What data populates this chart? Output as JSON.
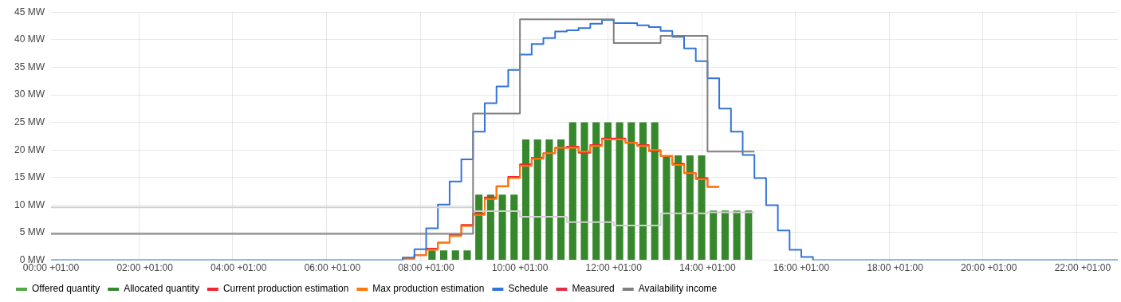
{
  "chart_data": {
    "type": "step",
    "ylim": [
      0,
      45
    ],
    "categories": [
      "00:00 +01:00",
      null,
      null,
      null,
      null,
      null,
      null,
      null,
      "02:00 +01:00",
      null,
      null,
      null,
      null,
      null,
      null,
      null,
      "04:00 +01:00",
      null,
      null,
      null,
      null,
      null,
      null,
      null,
      "06:00 +01:00",
      null,
      null,
      null,
      null,
      null,
      null,
      null,
      "08:00 +01:00",
      null,
      null,
      null,
      null,
      null,
      null,
      null,
      "10:00 +01:00",
      null,
      null,
      null,
      null,
      null,
      null,
      null,
      "12:00 +01:00",
      null,
      null,
      null,
      null,
      null,
      null,
      null,
      "14:00 +01:00",
      null,
      null,
      null,
      null,
      null,
      null,
      null,
      "16:00 +01:00",
      null,
      null,
      null,
      null,
      null,
      null,
      null,
      "18:00 +01:00",
      null,
      null,
      null,
      null,
      null,
      null,
      null,
      "20:00 +01:00",
      null,
      null,
      null,
      null,
      null,
      null,
      null,
      "22:00 +01:00",
      null,
      null,
      null
    ],
    "yticks": [
      {
        "value": 0,
        "label": "0 MW"
      },
      {
        "value": 5,
        "label": "5 MW"
      },
      {
        "value": 10,
        "label": "10 MW"
      },
      {
        "value": 15,
        "label": "15 MW"
      },
      {
        "value": 20,
        "label": "20 MW"
      },
      {
        "value": 25,
        "label": "25 MW"
      },
      {
        "value": 30,
        "label": "30 MW"
      },
      {
        "value": 35,
        "label": "35 MW"
      },
      {
        "value": 40,
        "label": "40 MW"
      },
      {
        "value": 45,
        "label": "45 MW"
      }
    ],
    "grid": true,
    "legend": "bottom",
    "marker": "none",
    "line_style": "solid",
    "series": [
      {
        "name": "Offered quantity",
        "color": "#56a64b",
        "values": [
          null,
          null,
          null,
          null,
          null,
          null,
          null,
          null,
          null,
          null,
          null,
          null,
          null,
          null,
          null,
          null,
          null,
          null,
          null,
          null,
          null,
          null,
          null,
          null,
          null,
          null,
          null,
          null,
          null,
          null,
          null,
          null,
          null,
          null,
          null,
          null,
          null,
          null,
          null,
          null,
          null,
          null,
          null,
          null,
          null,
          null,
          null,
          null,
          null,
          null,
          null,
          null,
          null,
          null,
          null,
          null,
          null,
          null,
          null,
          null,
          null,
          null,
          null,
          null,
          null,
          null,
          null,
          null,
          null,
          null,
          null,
          null,
          null,
          null,
          null,
          null,
          null,
          null,
          null,
          null,
          null,
          null,
          null,
          null,
          null,
          null,
          null,
          null,
          null,
          null,
          null,
          null
        ]
      },
      {
        "name": "Allocated quantity",
        "type": "bar",
        "color": "#37872d",
        "values": [
          null,
          null,
          null,
          null,
          null,
          null,
          null,
          null,
          null,
          null,
          null,
          null,
          null,
          null,
          null,
          null,
          null,
          null,
          null,
          null,
          null,
          null,
          null,
          null,
          null,
          null,
          null,
          null,
          null,
          null,
          null,
          null,
          1.8,
          1.8,
          1.8,
          1.8,
          11.9,
          11.9,
          11.9,
          11.9,
          21.9,
          21.9,
          21.9,
          21.9,
          25,
          25,
          25,
          25,
          25,
          25,
          25,
          25,
          19,
          19,
          19,
          19,
          9,
          9,
          9,
          9,
          null,
          null,
          null,
          null,
          null,
          null,
          null,
          null,
          null,
          null,
          null,
          null,
          null,
          null,
          null,
          null,
          null,
          null,
          null,
          null,
          null,
          null,
          null,
          null,
          null,
          null,
          null,
          null,
          null,
          null,
          null,
          null
        ]
      },
      {
        "name": "Current production estimation",
        "color": "#f2262f",
        "values": [
          null,
          null,
          null,
          null,
          null,
          null,
          null,
          null,
          null,
          null,
          null,
          null,
          null,
          null,
          null,
          null,
          null,
          null,
          null,
          null,
          null,
          null,
          null,
          null,
          null,
          null,
          null,
          null,
          null,
          null,
          0.3,
          0.9,
          2.1,
          3.2,
          4.6,
          6.4,
          8.5,
          11.4,
          13.4,
          15.1,
          17.4,
          18.6,
          19.4,
          20.4,
          20.6,
          19.5,
          20.9,
          22.1,
          22.1,
          21.3,
          20.9,
          19.8,
          18.9,
          17.5,
          15.8,
          14.9,
          13.3,
          13.3,
          null,
          null,
          null,
          null,
          null,
          null,
          null,
          null,
          null,
          null,
          null,
          null,
          null,
          null,
          null,
          null,
          null,
          null,
          null,
          null,
          null,
          null,
          null,
          null,
          null,
          null,
          null,
          null,
          null,
          null,
          null,
          null,
          null,
          null
        ]
      },
      {
        "name": "Max production estimation",
        "color": "#ff780a",
        "values": [
          null,
          null,
          null,
          null,
          null,
          null,
          null,
          null,
          null,
          null,
          null,
          null,
          null,
          null,
          null,
          null,
          null,
          null,
          null,
          null,
          null,
          null,
          null,
          null,
          null,
          null,
          null,
          null,
          null,
          null,
          0.3,
          0.9,
          1.9,
          3.2,
          4.4,
          6.2,
          8.2,
          11.1,
          13.4,
          14.9,
          17.1,
          18.4,
          19.4,
          20.4,
          20.4,
          19.7,
          20.7,
          21.9,
          21.9,
          21.3,
          20.7,
          20.0,
          18.9,
          17.3,
          15.8,
          14.7,
          13.3,
          13.3,
          null,
          null,
          null,
          null,
          null,
          null,
          null,
          null,
          null,
          null,
          null,
          null,
          null,
          null,
          null,
          null,
          null,
          null,
          null,
          null,
          null,
          null,
          null,
          null,
          null,
          null,
          null,
          null,
          null,
          null,
          null,
          null,
          null,
          null
        ]
      },
      {
        "name": "Schedule",
        "color": "#3274d9",
        "values": [
          0,
          0,
          0,
          0,
          0,
          0,
          0,
          0,
          0,
          0,
          0,
          0,
          0,
          0,
          0,
          0,
          0,
          0,
          0,
          0,
          0,
          0,
          0,
          0,
          0,
          0,
          0,
          0,
          0,
          0,
          0.5,
          2.0,
          5.8,
          10.1,
          14.3,
          18.3,
          23.3,
          28.5,
          31.5,
          34.5,
          37.3,
          39.2,
          40.3,
          41.5,
          41.7,
          42.1,
          42.9,
          43.6,
          43.0,
          43.0,
          42.6,
          42.3,
          41.6,
          40.5,
          38.4,
          36.1,
          33.0,
          27.5,
          23.3,
          19.1,
          14.9,
          10.0,
          5.4,
          1.9,
          0.6,
          0,
          0,
          0,
          0,
          0,
          0,
          0,
          0,
          0,
          0,
          0,
          0,
          0,
          0,
          0,
          0,
          0,
          0,
          0,
          0,
          0,
          0,
          0,
          0,
          0,
          0,
          0
        ]
      },
      {
        "name": "Measured",
        "color": "#e02f44",
        "values": [
          null,
          null,
          null,
          null,
          null,
          null,
          null,
          null,
          null,
          null,
          null,
          null,
          null,
          null,
          null,
          null,
          null,
          null,
          null,
          null,
          null,
          null,
          null,
          null,
          null,
          null,
          null,
          null,
          null,
          null,
          null,
          null,
          null,
          null,
          null,
          null,
          null,
          null,
          null,
          null,
          null,
          null,
          null,
          null,
          null,
          null,
          null,
          null,
          null,
          null,
          null,
          null,
          null,
          null,
          null,
          null,
          null,
          null,
          null,
          null,
          null,
          null,
          null,
          null,
          null,
          null,
          null,
          null,
          null,
          null,
          null,
          null,
          null,
          null,
          null,
          null,
          null,
          null,
          null,
          null,
          null,
          null,
          null,
          null,
          null,
          null,
          null,
          null,
          null,
          null,
          null,
          null
        ]
      },
      {
        "color": "#d0d0d0",
        "values": [
          9.6,
          9.6,
          9.6,
          9.6,
          9.6,
          9.6,
          9.6,
          9.6,
          9.6,
          9.6,
          9.6,
          9.6,
          9.6,
          9.6,
          9.6,
          9.6,
          9.6,
          9.6,
          9.6,
          9.6,
          9.6,
          9.6,
          9.6,
          9.6,
          9.6,
          9.6,
          9.6,
          9.6,
          9.6,
          9.6,
          9.6,
          9.6,
          9.6,
          9.6,
          9.6,
          9.6,
          8.9,
          8.9,
          8.9,
          8.9,
          7.9,
          7.9,
          7.9,
          7.9,
          6.9,
          6.9,
          6.9,
          6.9,
          6.3,
          6.3,
          6.3,
          6.3,
          8.5,
          8.5,
          8.5,
          8.5,
          8.7,
          8.7,
          8.7,
          8.7,
          8.7,
          null,
          null,
          null,
          null,
          null,
          null,
          null,
          null,
          null,
          null,
          null,
          null,
          null,
          null,
          null,
          null,
          null,
          null,
          null,
          null,
          null,
          null,
          null,
          null,
          null,
          null,
          null,
          null,
          null,
          null,
          null
        ]
      },
      {
        "name": "Availability income",
        "color": "#808080",
        "values": [
          4.8,
          4.8,
          4.8,
          4.8,
          4.8,
          4.8,
          4.8,
          4.8,
          4.8,
          4.8,
          4.8,
          4.8,
          4.8,
          4.8,
          4.8,
          4.8,
          4.8,
          4.8,
          4.8,
          4.8,
          4.8,
          4.8,
          4.8,
          4.8,
          4.8,
          4.8,
          4.8,
          4.8,
          4.8,
          4.8,
          4.8,
          4.8,
          4.8,
          4.8,
          4.8,
          4.8,
          26.6,
          26.6,
          26.6,
          26.6,
          43.7,
          43.7,
          43.7,
          43.7,
          43.7,
          43.7,
          43.7,
          43.7,
          39.4,
          39.4,
          39.4,
          39.4,
          40.7,
          40.7,
          40.7,
          40.7,
          19.7,
          19.7,
          19.7,
          19.7,
          19.7,
          null,
          null,
          null,
          null,
          null,
          null,
          null,
          null,
          null,
          null,
          null,
          null,
          null,
          null,
          null,
          null,
          null,
          null,
          null,
          null,
          null,
          null,
          null,
          null,
          null,
          null,
          null,
          null,
          null,
          null,
          null
        ]
      }
    ]
  }
}
